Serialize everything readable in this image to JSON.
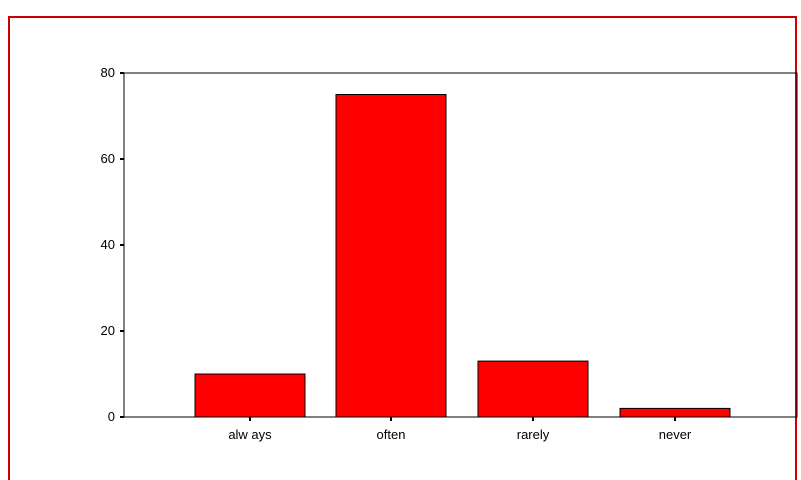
{
  "chart_data": {
    "type": "bar",
    "categories": [
      "alw ays",
      "often",
      "rarely",
      "never"
    ],
    "values": [
      10,
      75,
      13,
      2
    ],
    "ylim": [
      0,
      80
    ],
    "yticks": [
      0,
      20,
      40,
      60,
      80
    ],
    "bar_color": "#ff0000",
    "frame_color": "#cc0000",
    "grid": false,
    "legend": "none"
  }
}
